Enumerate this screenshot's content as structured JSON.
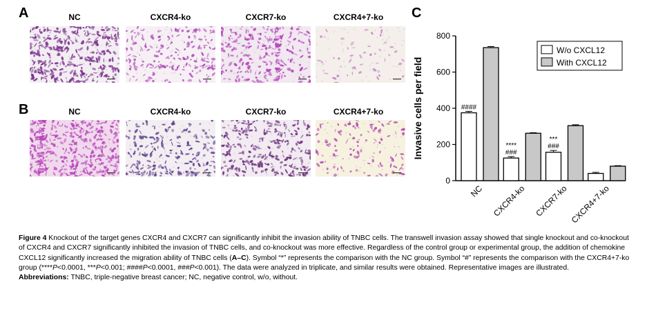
{
  "panels": {
    "a_letter": "A",
    "b_letter": "B",
    "c_letter": "C",
    "row_labels": [
      "NC",
      "CXCR4-ko",
      "CXCR7-ko",
      "CXCR4+7-ko"
    ]
  },
  "micrographs": {
    "rowA": [
      {
        "name": "NC",
        "density": 0.85,
        "bg": "#f2eef3",
        "stain": "#7a2e8a"
      },
      {
        "name": "CXCR4-ko",
        "density": 0.45,
        "bg": "#f6f0f4",
        "stain": "#b04dbb"
      },
      {
        "name": "CXCR7-ko",
        "density": 0.6,
        "bg": "#f1e8f0",
        "stain": "#b23eb8"
      },
      {
        "name": "CXCR4+7-ko",
        "density": 0.12,
        "bg": "#f4efea",
        "stain": "#c883c8"
      }
    ],
    "rowB": [
      {
        "name": "NC",
        "density": 0.95,
        "bg": "#f0d9ec",
        "stain": "#b63fb8"
      },
      {
        "name": "CXCR4-ko",
        "density": 0.5,
        "bg": "#f3eef2",
        "stain": "#5a3f8a"
      },
      {
        "name": "CXCR7-ko",
        "density": 0.65,
        "bg": "#f2ebf2",
        "stain": "#6b2f7c"
      },
      {
        "name": "CXCR4+7-ko",
        "density": 0.28,
        "bg": "#f6f2df",
        "stain": "#b447b3"
      }
    ]
  },
  "chart_data": {
    "type": "bar",
    "categories": [
      "NC",
      "CXCR4-ko",
      "CXCR7-ko",
      "CXCR4+7-ko"
    ],
    "series": [
      {
        "name": "W/o CXCL12",
        "color": "#ffffff",
        "values": [
          375,
          125,
          157,
          40
        ],
        "errors": [
          8,
          8,
          10,
          6
        ]
      },
      {
        "name": "With CXCL12",
        "color": "#c8c8c8",
        "values": [
          735,
          262,
          304,
          80
        ],
        "errors": [
          6,
          3,
          5,
          3
        ]
      }
    ],
    "ylabel": "Invasive cells per field",
    "ylim": [
      0,
      800
    ],
    "yticks": [
      0,
      200,
      400,
      600,
      800
    ],
    "annotations": [
      {
        "category": "NC",
        "lines": [
          "####"
        ]
      },
      {
        "category": "CXCR4-ko",
        "lines": [
          "****",
          "###"
        ]
      },
      {
        "category": "CXCR7-ko",
        "lines": [
          "***",
          "###"
        ]
      }
    ],
    "legend_position": "top-right"
  },
  "caption": {
    "figure_label": "Figure 4",
    "text1": " Knockout of the target genes CXCR4 and CXCR7 can significantly inhibit the invasion ability of TNBC cells. The transwell invasion assay showed that single knockout and co-knockout of CXCR4 and CXCR7 significantly inhibited the invasion of TNBC cells, and co-knockout was more effective. Regardless of the control group or experimental group, the addition of chemokine CXCL12 significantly increased the migration ability of TNBC cells (",
    "panel_ref": "A–C",
    "text2": "). Symbol “*” represents the comparison with the NC group. Symbol “#” represents the comparison with the CXCR4+7-ko group (****",
    "p1": "P",
    "text3": "<0.0001, ***",
    "p2": "P",
    "text4": "<0.001; ####",
    "p3": "P",
    "text5": "<0.0001, ###",
    "p4": "P",
    "text6": "<0.001). The data were analyzed in triplicate, and similar results were obtained. Representative images are illustrated.",
    "abbr_label": "Abbreviations:",
    "abbr_text": " TNBC, triple-negative breast cancer; NC, negative control, w/o, without."
  }
}
